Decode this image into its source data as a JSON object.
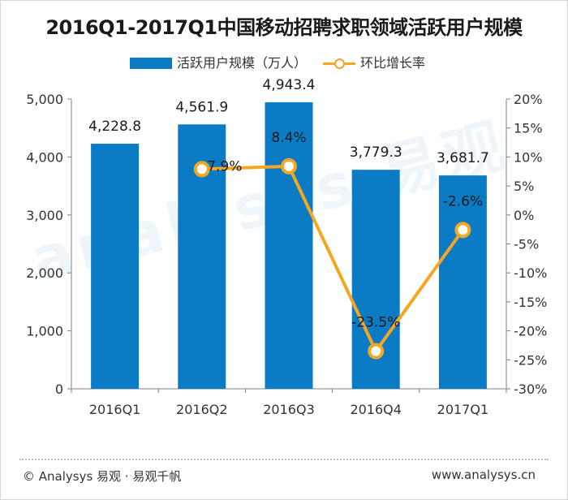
{
  "title": "2016Q1-2017Q1中国移动招聘求职领域活跃用户规模",
  "watermark": "analysys 易观",
  "legend": {
    "bar_label": "活跃用户规模（万人）",
    "line_label": "环比增长率"
  },
  "colors": {
    "bar": "#0b7bc6",
    "line": "#f5a623",
    "axis": "#7f7f7f",
    "text": "#1a1a1a"
  },
  "chart_data": {
    "type": "bar",
    "title": "2016Q1-2017Q1中国移动招聘求职领域活跃用户规模",
    "categories": [
      "2016Q1",
      "2016Q2",
      "2016Q3",
      "2016Q4",
      "2017Q1"
    ],
    "series": [
      {
        "name": "活跃用户规模（万人）",
        "type": "bar",
        "axis": "left",
        "values": [
          4228.8,
          4561.9,
          4943.4,
          3779.3,
          3681.7
        ],
        "labels": [
          "4,228.8",
          "4,561.9",
          "4,943.4",
          "3,779.3",
          "3,681.7"
        ]
      },
      {
        "name": "环比增长率",
        "type": "line",
        "axis": "right",
        "values": [
          null,
          7.9,
          8.4,
          -23.5,
          -2.6
        ],
        "labels": [
          "",
          "7.9%",
          "8.4%",
          "-23.5%",
          "-2.6%"
        ]
      }
    ],
    "y_left": {
      "range": [
        0,
        5000
      ],
      "ticks": [
        0,
        1000,
        2000,
        3000,
        4000,
        5000
      ],
      "tick_labels": [
        "0",
        "1,000",
        "2,000",
        "3,000",
        "4,000",
        "5,000"
      ]
    },
    "y_right": {
      "range": [
        -30,
        20
      ],
      "ticks": [
        -30,
        -25,
        -20,
        -15,
        -10,
        -5,
        0,
        5,
        10,
        15,
        20
      ],
      "tick_labels": [
        "-30%",
        "-25%",
        "-20%",
        "-15%",
        "-10%",
        "-5%",
        "0%",
        "5%",
        "10%",
        "15%",
        "20%"
      ]
    },
    "grid": false,
    "legend_position": "top"
  },
  "footer": {
    "left": "© Analysys 易观 · 易观千帆",
    "right": "www.analysys.cn"
  }
}
